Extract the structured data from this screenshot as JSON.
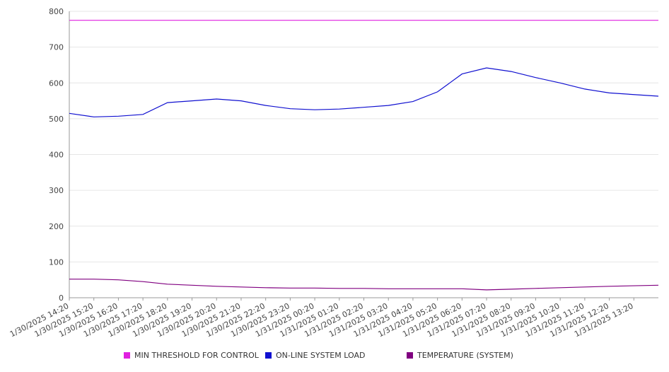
{
  "chart_data": {
    "type": "line",
    "title": "",
    "xlabel": "",
    "ylabel": "",
    "ylim": [
      0,
      800
    ],
    "yticks": [
      0,
      100,
      200,
      300,
      400,
      500,
      600,
      700,
      800
    ],
    "grid": true,
    "legend_position": "bottom",
    "x_categories": [
      "1/30/2025 14:20",
      "1/30/2025 15:20",
      "1/30/2025 16:20",
      "1/30/2025 17:20",
      "1/30/2025 18:20",
      "1/30/2025 19:20",
      "1/30/2025 20:20",
      "1/30/2025 21:20",
      "1/30/2025 22:20",
      "1/30/2025 23:20",
      "1/31/2025 00:20",
      "1/31/2025 01:20",
      "1/31/2025 02:20",
      "1/31/2025 03:20",
      "1/31/2025 04:20",
      "1/31/2025 05:20",
      "1/31/2025 06:20",
      "1/31/2025 07:20",
      "1/31/2025 08:20",
      "1/31/2025 09:20",
      "1/31/2025 10:20",
      "1/31/2025 11:20",
      "1/31/2025 12:20",
      "1/31/2025 13:20"
    ],
    "series": [
      {
        "name": "MIN THRESHOLD FOR CONTROL",
        "color": "#e020e0",
        "values": [
          775,
          775,
          775,
          775,
          775,
          775,
          775,
          775,
          775,
          775,
          775,
          775,
          775,
          775,
          775,
          775,
          775,
          775,
          775,
          775,
          775,
          775,
          775,
          775
        ]
      },
      {
        "name": "ON-LINE SYSTEM LOAD",
        "color": "#1010d0",
        "values": [
          515,
          505,
          507,
          512,
          545,
          550,
          555,
          550,
          537,
          528,
          525,
          527,
          532,
          537,
          548,
          575,
          625,
          642,
          632,
          615,
          600,
          583,
          572,
          563
        ]
      },
      {
        "name": "TEMPERATURE (SYSTEM)",
        "color": "#800080",
        "values": [
          52,
          52,
          50,
          45,
          38,
          35,
          32,
          30,
          28,
          27,
          27,
          26,
          26,
          25,
          25,
          25,
          25,
          22,
          24,
          26,
          28,
          30,
          32,
          35
        ]
      }
    ]
  }
}
